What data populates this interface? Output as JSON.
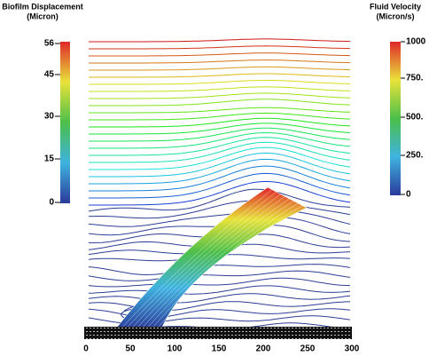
{
  "left_colorbar": {
    "title": [
      "Biofilm Displacement",
      "(Micron)"
    ],
    "ticks": [
      "56",
      "45",
      "30",
      "15",
      "0"
    ]
  },
  "right_colorbar": {
    "title": [
      "Fluid Velocity",
      "(Micron/s)"
    ],
    "ticks": [
      "1000",
      "750.",
      "500.",
      "250.",
      "0"
    ]
  },
  "x_axis": {
    "ticks": [
      "0",
      "50",
      "100",
      "150",
      "200",
      "250",
      "300"
    ]
  }
}
